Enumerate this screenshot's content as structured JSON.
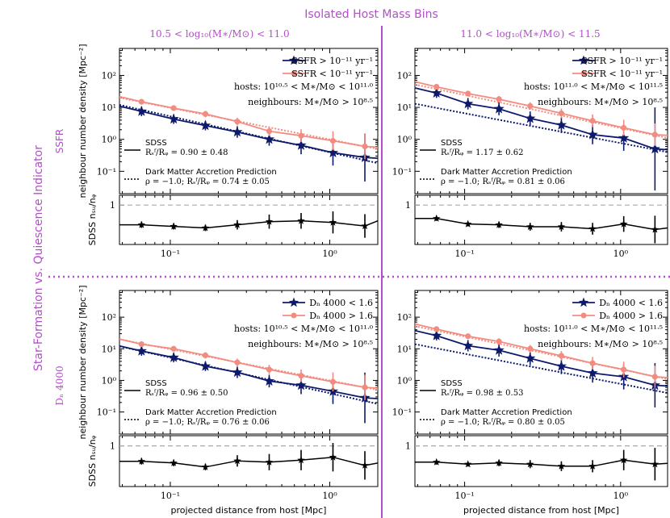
{
  "figure": {
    "supertitle": "Isolated Host Mass Bins",
    "side_title": "Star-Formation vs. Quiescence Indicator",
    "column_titles": [
      "10.5 < log₁₀(M∗/M⊙) < 11.0",
      "11.0 < log₁₀(M∗/M⊙) < 11.5"
    ],
    "row_labels": [
      "SSFR",
      "Dₙ 4000"
    ],
    "colors": {
      "purple": "#b44dcc",
      "sf": "#0d1a6b",
      "q": "#f28c80",
      "ratio": "#000000",
      "ref_line": "#aaaaaa"
    }
  },
  "chart_data": [
    {
      "id": "ssfr-low",
      "type": "line",
      "ylabel": "neighbour number density [Mpc⁻²]",
      "ratio_ylabel": "SDSS  nₛᵤ/nᵩ",
      "xlabel": "",
      "xlim": [
        0.048,
        2.0
      ],
      "ylim": [
        0.02,
        700
      ],
      "ratio_ylim": [
        0,
        1.25
      ],
      "xticks": [
        {
          "v": 0.1,
          "l": "10⁻¹"
        },
        {
          "v": 1,
          "l": "10⁰"
        }
      ],
      "yticks": [
        {
          "v": 0.1,
          "l": "10⁻¹"
        },
        {
          "v": 1,
          "l": "10⁰"
        },
        {
          "v": 10,
          "l": "10¹"
        },
        {
          "v": 100,
          "l": "10²"
        }
      ],
      "legend": {
        "sf": "SSFR > 10⁻¹¹ yr⁻¹",
        "q": "SSFR < 10⁻¹¹ yr⁻¹",
        "hosts": "hosts: 10¹⁰ᐧ⁵ < M∗/M⊙ < 10¹¹ᐧ⁰",
        "neighbours": "neighbours: M∗/M⊙ > 10⁸ᐧ⁵"
      },
      "sdss_label": "SDSS",
      "sdss_ratio": "Rₛᶠ/Rᵩ = 0.90 ± 0.48",
      "dm_label": "Dark Matter Accretion Prediction",
      "dm_ratio": "ρ = −1.0; Rₛᶠ/Rᵩ = 0.74 ± 0.05",
      "x": [
        0.066,
        0.105,
        0.166,
        0.263,
        0.417,
        0.661,
        1.047,
        1.66
      ],
      "series": [
        {
          "name": "sf",
          "values": [
            7.5,
            4.3,
            2.7,
            1.7,
            1.0,
            0.65,
            0.38,
            0.27
          ],
          "err": [
            0.15,
            0.15,
            0.15,
            0.18,
            0.2,
            0.28,
            0.4,
            0.75
          ]
        },
        {
          "name": "q",
          "values": [
            15,
            9.5,
            6.2,
            3.6,
            1.8,
            1.3,
            0.9,
            0.6
          ],
          "err": [
            0.08,
            0.08,
            0.1,
            0.12,
            0.15,
            0.2,
            0.3,
            0.4
          ]
        }
      ],
      "model_sf": [
        [
          0.048,
          12
        ],
        [
          2.0,
          0.18
        ]
      ],
      "model_q": [
        [
          0.048,
          20
        ],
        [
          2.0,
          0.5
        ]
      ],
      "ratio": {
        "values": [
          0.5,
          0.46,
          0.42,
          0.5,
          0.58,
          0.6,
          0.56,
          0.47
        ],
        "err": [
          0.08,
          0.08,
          0.08,
          0.12,
          0.18,
          0.2,
          0.28,
          0.3
        ],
        "end": 0.6
      }
    },
    {
      "id": "ssfr-high",
      "type": "line",
      "ylabel": "",
      "ratio_ylabel": "",
      "xlabel": "",
      "xlim": [
        0.048,
        2.0
      ],
      "ylim": [
        0.02,
        700
      ],
      "ratio_ylim": [
        0,
        1.25
      ],
      "xticks": [
        {
          "v": 0.1,
          "l": "10⁻¹"
        },
        {
          "v": 1,
          "l": "10⁰"
        }
      ],
      "yticks": [
        {
          "v": 0.1,
          "l": "10⁻¹"
        },
        {
          "v": 1,
          "l": "10⁰"
        },
        {
          "v": 10,
          "l": "10¹"
        },
        {
          "v": 100,
          "l": "10²"
        }
      ],
      "legend": {
        "sf": "SSFR > 10⁻¹¹ yr⁻¹",
        "q": "SSFR < 10⁻¹¹ yr⁻¹",
        "hosts": "hosts: 10¹¹ᐧ⁰ < M∗/M⊙ < 10¹¹ᐧ⁵",
        "neighbours": "neighbours: M∗/M⊙ > 10⁸ᐧ⁵"
      },
      "sdss_label": "SDSS",
      "sdss_ratio": "Rₛᶠ/Rᵩ = 1.17 ± 0.62",
      "dm_label": "Dark Matter Accretion Prediction",
      "dm_ratio": "ρ = −1.0; Rₛᶠ/Rᵩ = 0.81 ± 0.06",
      "x": [
        0.066,
        0.105,
        0.166,
        0.263,
        0.417,
        0.661,
        1.047,
        1.66
      ],
      "series": [
        {
          "name": "sf",
          "values": [
            28,
            13,
            9,
            4.5,
            2.8,
            1.4,
            1.1,
            0.5
          ],
          "err": [
            0.15,
            0.18,
            0.2,
            0.22,
            0.25,
            0.3,
            0.4,
            1.3
          ]
        },
        {
          "name": "q",
          "values": [
            44,
            27,
            18,
            11,
            6.5,
            3.8,
            2.3,
            1.4
          ],
          "err": [
            0.08,
            0.08,
            0.1,
            0.12,
            0.15,
            0.2,
            0.25,
            0.35
          ]
        }
      ],
      "model_sf": [
        [
          0.048,
          13
        ],
        [
          2.0,
          0.4
        ]
      ],
      "model_q": [
        [
          0.048,
          52
        ],
        [
          2.0,
          1.1
        ]
      ],
      "ratio": {
        "values": [
          0.66,
          0.52,
          0.5,
          0.45,
          0.45,
          0.4,
          0.52,
          0.38
        ],
        "err": [
          0.06,
          0.06,
          0.08,
          0.1,
          0.12,
          0.15,
          0.2,
          0.35
        ],
        "end": 0.42
      }
    },
    {
      "id": "dn-low",
      "type": "line",
      "ylabel": "neighbour number density [Mpc⁻²]",
      "ratio_ylabel": "SDSS  nₛᵤ/nᵩ",
      "xlabel": "projected distance from host [Mpc]",
      "xlim": [
        0.048,
        2.0
      ],
      "ylim": [
        0.02,
        700
      ],
      "ratio_ylim": [
        0,
        1.25
      ],
      "xticks": [
        {
          "v": 0.1,
          "l": "10⁻¹"
        },
        {
          "v": 1,
          "l": "10⁰"
        }
      ],
      "yticks": [
        {
          "v": 0.1,
          "l": "10⁻¹"
        },
        {
          "v": 1,
          "l": "10⁰"
        },
        {
          "v": 10,
          "l": "10¹"
        },
        {
          "v": 100,
          "l": "10²"
        }
      ],
      "legend": {
        "sf": "Dₙ 4000 < 1.6",
        "q": "Dₙ 4000 > 1.6",
        "hosts": "hosts: 10¹⁰ᐧ⁵ < M∗/M⊙ < 10¹¹ᐧ⁰",
        "neighbours": "neighbours: M∗/M⊙ > 10⁸ᐧ⁵"
      },
      "sdss_label": "SDSS",
      "sdss_ratio": "Rₛᶠ/Rᵩ = 0.96 ± 0.50",
      "dm_label": "Dark Matter Accretion Prediction",
      "dm_ratio": "ρ = −1.0; Rₛᶠ/Rᵩ = 0.76 ± 0.06",
      "x": [
        0.066,
        0.105,
        0.166,
        0.263,
        0.417,
        0.661,
        1.047,
        1.66
      ],
      "series": [
        {
          "name": "sf",
          "values": [
            8.5,
            5.3,
            2.8,
            1.8,
            0.95,
            0.7,
            0.45,
            0.28
          ],
          "err": [
            0.15,
            0.15,
            0.15,
            0.18,
            0.2,
            0.28,
            0.4,
            0.8
          ]
        },
        {
          "name": "q",
          "values": [
            14,
            10,
            6.2,
            3.7,
            2.2,
            1.4,
            0.9,
            0.6
          ],
          "err": [
            0.08,
            0.08,
            0.1,
            0.12,
            0.15,
            0.2,
            0.3,
            0.4
          ]
        }
      ],
      "model_sf": [
        [
          0.048,
          12
        ],
        [
          2.0,
          0.18
        ]
      ],
      "model_q": [
        [
          0.048,
          20
        ],
        [
          2.0,
          0.5
        ]
      ],
      "ratio": {
        "values": [
          0.62,
          0.58,
          0.48,
          0.63,
          0.6,
          0.65,
          0.72,
          0.52
        ],
        "err": [
          0.08,
          0.08,
          0.08,
          0.14,
          0.2,
          0.25,
          0.35,
          0.35
        ],
        "end": 0.58
      }
    },
    {
      "id": "dn-high",
      "type": "line",
      "ylabel": "",
      "ratio_ylabel": "",
      "xlabel": "projected distance from host [Mpc]",
      "xlim": [
        0.048,
        2.0
      ],
      "ylim": [
        0.02,
        700
      ],
      "ratio_ylim": [
        0,
        1.25
      ],
      "xticks": [
        {
          "v": 0.1,
          "l": "10⁻¹"
        },
        {
          "v": 1,
          "l": "10⁰"
        }
      ],
      "yticks": [
        {
          "v": 0.1,
          "l": "10⁻¹"
        },
        {
          "v": 1,
          "l": "10⁰"
        },
        {
          "v": 10,
          "l": "10¹"
        },
        {
          "v": 100,
          "l": "10²"
        }
      ],
      "legend": {
        "sf": "Dₙ 4000 < 1.6",
        "q": "Dₙ 4000 > 1.6",
        "hosts": "hosts: 10¹¹ᐧ⁰ < M∗/M⊙ < 10¹¹ᐧ⁵",
        "neighbours": "neighbours: M∗/M⊙ > 10⁸ᐧ⁵"
      },
      "sdss_label": "SDSS",
      "sdss_ratio": "Rₛᶠ/Rᵩ = 0.98 ± 0.53",
      "dm_label": "Dark Matter Accretion Prediction",
      "dm_ratio": "ρ = −1.0; Rₛᶠ/Rᵩ = 0.80 ± 0.05",
      "x": [
        0.066,
        0.105,
        0.166,
        0.263,
        0.417,
        0.661,
        1.047,
        1.66
      ],
      "series": [
        {
          "name": "sf",
          "values": [
            26,
            12.5,
            9,
            5,
            2.8,
            1.7,
            1.3,
            0.7
          ],
          "err": [
            0.15,
            0.18,
            0.2,
            0.22,
            0.25,
            0.3,
            0.4,
            0.7
          ]
        },
        {
          "name": "q",
          "values": [
            42,
            25,
            17,
            10,
            6,
            3.5,
            2.2,
            1.3
          ],
          "err": [
            0.08,
            0.08,
            0.1,
            0.12,
            0.15,
            0.2,
            0.25,
            0.35
          ]
        }
      ],
      "model_sf": [
        [
          0.048,
          14
        ],
        [
          2.0,
          0.4
        ]
      ],
      "model_q": [
        [
          0.048,
          52
        ],
        [
          2.0,
          1.1
        ]
      ],
      "ratio": {
        "values": [
          0.6,
          0.55,
          0.58,
          0.55,
          0.5,
          0.5,
          0.65,
          0.55
        ],
        "err": [
          0.06,
          0.06,
          0.08,
          0.1,
          0.12,
          0.15,
          0.25,
          0.4
        ],
        "end": 0.57
      }
    }
  ]
}
